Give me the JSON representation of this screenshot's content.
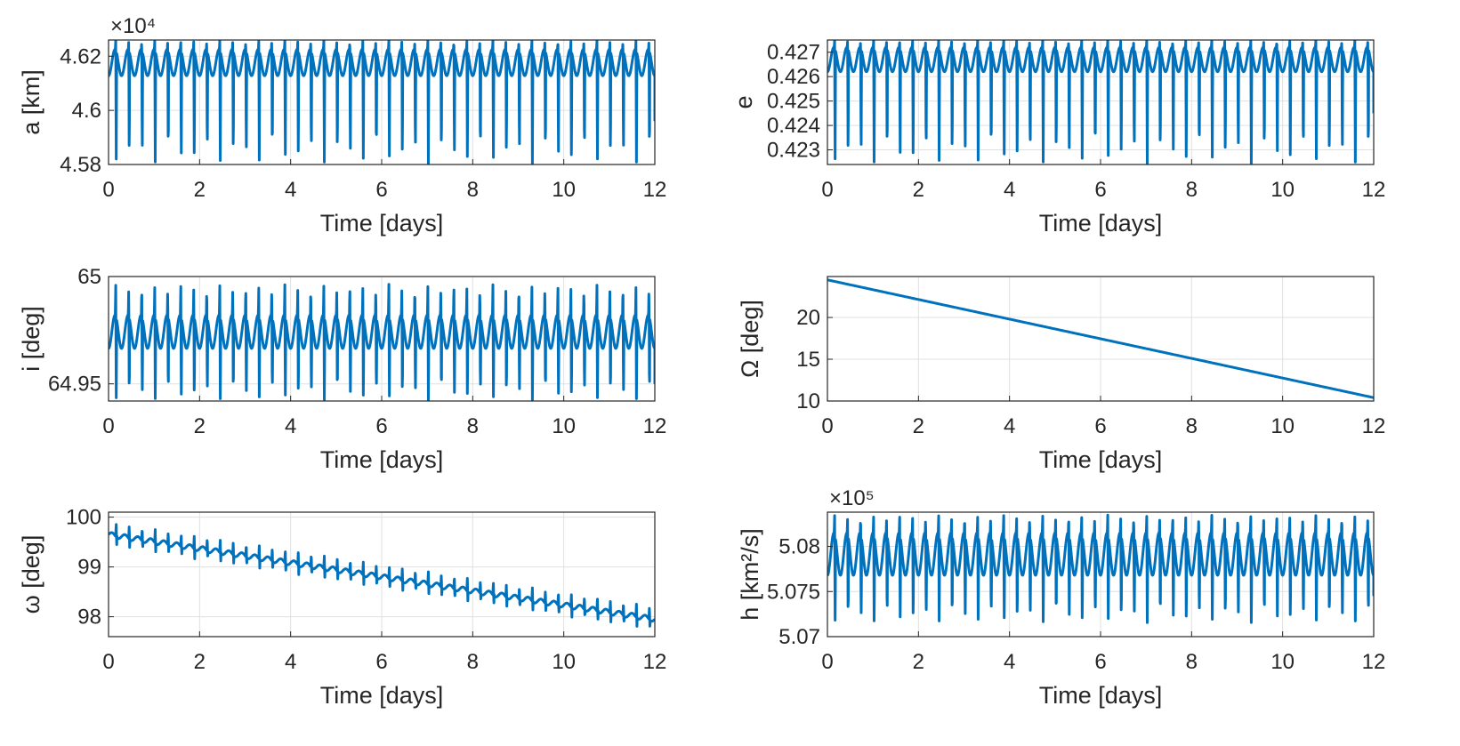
{
  "figure": {
    "series_color": "#0072BD",
    "grid_color": "#E0E0E0",
    "axis_color": "#262626"
  },
  "chart_data": [
    {
      "type": "line",
      "ylabel": "a [km]",
      "xlabel": "Time [days]",
      "xlim": [
        0,
        12
      ],
      "ylim": [
        4.58,
        4.626
      ],
      "xticks": [
        0,
        2,
        4,
        6,
        8,
        10,
        12
      ],
      "yticks": [
        4.58,
        4.6,
        4.62
      ],
      "ytick_labels": [
        "4.58",
        "4.6",
        "4.62"
      ],
      "exponent": "×10⁴",
      "grid": true,
      "series": [
        {
          "kind": "periodic",
          "period_days": 0.2857,
          "x_end": 12,
          "baseline": 4.6128,
          "hump_peak": 4.6225,
          "max": 4.626,
          "min": 4.58,
          "end_value": 4.596
        }
      ]
    },
    {
      "type": "line",
      "ylabel": "e",
      "xlabel": "Time [days]",
      "xlim": [
        0,
        12
      ],
      "ylim": [
        0.4224,
        0.4275
      ],
      "xticks": [
        0,
        2,
        4,
        6,
        8,
        10,
        12
      ],
      "yticks": [
        0.423,
        0.424,
        0.425,
        0.426,
        0.427
      ],
      "ytick_labels": [
        "0.423",
        "0.424",
        "0.425",
        "0.426",
        "0.427"
      ],
      "exponent": "",
      "grid": true,
      "series": [
        {
          "kind": "periodic",
          "period_days": 0.2857,
          "x_end": 12,
          "baseline": 0.4262,
          "hump_peak": 0.4272,
          "max": 0.4275,
          "min": 0.4224,
          "end_value": 0.4245
        }
      ]
    },
    {
      "type": "line",
      "ylabel": "i [deg]",
      "xlabel": "Time [days]",
      "xlim": [
        0,
        12
      ],
      "ylim": [
        64.942,
        65.0
      ],
      "xticks": [
        0,
        2,
        4,
        6,
        8,
        10,
        12
      ],
      "yticks": [
        64.95,
        65
      ],
      "ytick_labels": [
        "64.95",
        "65"
      ],
      "exponent": "",
      "grid": true,
      "series": [
        {
          "kind": "periodic",
          "period_days": 0.2857,
          "x_end": 12,
          "baseline": 64.9665,
          "hump_peak": 64.982,
          "max": 64.9965,
          "min": 64.942,
          "end_value": 64.95
        }
      ]
    },
    {
      "type": "line",
      "ylabel": "Ω [deg]",
      "xlabel": "Time [days]",
      "xlim": [
        0,
        12
      ],
      "ylim": [
        10,
        24.9
      ],
      "xticks": [
        0,
        2,
        4,
        6,
        8,
        10,
        12
      ],
      "yticks": [
        10,
        15,
        20
      ],
      "ytick_labels": [
        "10",
        "15",
        "20"
      ],
      "exponent": "",
      "grid": true,
      "series": [
        {
          "kind": "linear",
          "x": [
            0,
            12
          ],
          "y": [
            24.5,
            10.4
          ]
        }
      ]
    },
    {
      "type": "line",
      "ylabel": "ω [deg]",
      "xlabel": "Time [days]",
      "xlim": [
        0,
        12
      ],
      "ylim": [
        97.6,
        100.1
      ],
      "xticks": [
        0,
        2,
        4,
        6,
        8,
        10,
        12
      ],
      "yticks": [
        98,
        99,
        100
      ],
      "ytick_labels": [
        "98",
        "99",
        "100"
      ],
      "exponent": "",
      "grid": true,
      "series": [
        {
          "kind": "drift_oscillating",
          "period_days": 0.2857,
          "x_end": 12,
          "trend_start": 99.65,
          "trend_end": 97.95,
          "spike_up": 0.25,
          "spike_down": 0.22
        }
      ]
    },
    {
      "type": "line",
      "ylabel": "h [km²/s]",
      "xlabel": "Time [days]",
      "xlim": [
        0,
        12
      ],
      "ylim": [
        5.07,
        5.0838
      ],
      "xticks": [
        0,
        2,
        4,
        6,
        8,
        10,
        12
      ],
      "yticks": [
        5.07,
        5.075,
        5.08
      ],
      "ytick_labels": [
        "5.07",
        "5.075",
        "5.08"
      ],
      "exponent": "×10⁵",
      "grid": true,
      "series": [
        {
          "kind": "periodic",
          "period_days": 0.2857,
          "x_end": 12,
          "baseline": 5.0768,
          "hump_peak": 5.0815,
          "max": 5.0835,
          "min": 5.0715,
          "end_value": 5.0745
        }
      ]
    }
  ]
}
